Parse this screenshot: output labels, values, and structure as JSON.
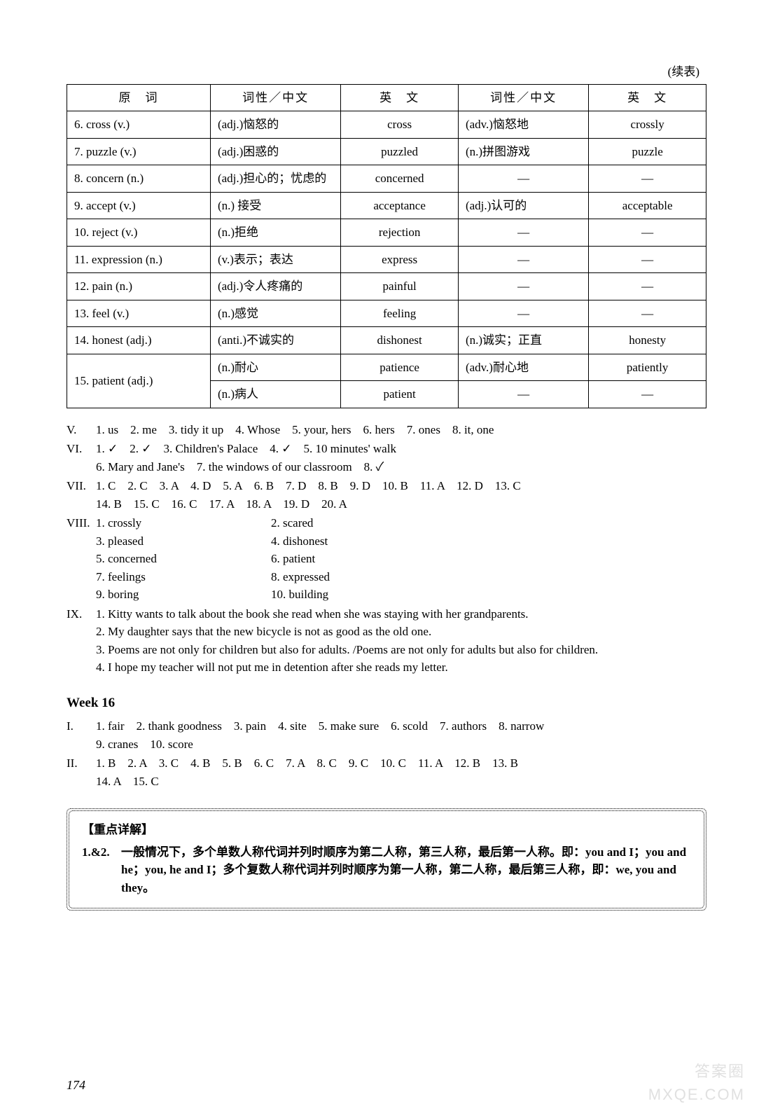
{
  "continuedLabel": "(续表)",
  "table": {
    "headers": [
      "原　词",
      "词性／中文",
      "英　文",
      "词性／中文",
      "英　文"
    ],
    "rows": [
      {
        "orig": "6. cross (v.)",
        "pos1": "(adj.)恼怒的",
        "eng1": "cross",
        "pos2": "(adv.)恼怒地",
        "eng2": "crossly"
      },
      {
        "orig": "7. puzzle (v.)",
        "pos1": "(adj.)困惑的",
        "eng1": "puzzled",
        "pos2": "(n.)拼图游戏",
        "eng2": "puzzle"
      },
      {
        "orig": "8. concern (n.)",
        "pos1": "(adj.)担心的；忧虑的",
        "eng1": "concerned",
        "pos2": "—",
        "eng2": "—"
      },
      {
        "orig": "9. accept (v.)",
        "pos1": "(n.) 接受",
        "eng1": "acceptance",
        "pos2": "(adj.)认可的",
        "eng2": "acceptable"
      },
      {
        "orig": "10. reject (v.)",
        "pos1": "(n.)拒绝",
        "eng1": "rejection",
        "pos2": "—",
        "eng2": "—"
      },
      {
        "orig": "11. expression (n.)",
        "pos1": "(v.)表示；表达",
        "eng1": "express",
        "pos2": "—",
        "eng2": "—"
      },
      {
        "orig": "12. pain (n.)",
        "pos1": "(adj.)令人疼痛的",
        "eng1": "painful",
        "pos2": "—",
        "eng2": "—"
      },
      {
        "orig": "13. feel (v.)",
        "pos1": "(n.)感觉",
        "eng1": "feeling",
        "pos2": "—",
        "eng2": "—"
      },
      {
        "orig": "14. honest (adj.)",
        "pos1": "(anti.)不诚实的",
        "eng1": "dishonest",
        "pos2": "(n.)诚实；正直",
        "eng2": "honesty"
      }
    ],
    "merged": {
      "orig": "15. patient (adj.)",
      "rowA": {
        "pos1": "(n.)耐心",
        "eng1": "patience",
        "pos2": "(adv.)耐心地",
        "eng2": "patiently"
      },
      "rowB": {
        "pos1": "(n.)病人",
        "eng1": "patient",
        "pos2": "—",
        "eng2": "—"
      }
    }
  },
  "V": "1. us　2. me　3. tidy it up　4. Whose　5. your, hers　6. hers　7. ones　8. it, one",
  "VI": {
    "line1": "1. ✓　2. ✓　3. Children's Palace　4. ✓　5. 10 minutes' walk",
    "line2": "6. Mary and Jane's　7. the windows of our classroom　8. ✓"
  },
  "VII": {
    "line1": "1. C　2. C　3. A　4. D　5. A　6. B　7. D　8. B　9. D　10. B　11. A　12. D　13. C",
    "line2": "14. B　15. C　16. C　17. A　18. A　19. D　20. A"
  },
  "VIII": [
    [
      "1. crossly",
      "2. scared"
    ],
    [
      "3. pleased",
      "4. dishonest"
    ],
    [
      "5. concerned",
      "6. patient"
    ],
    [
      "7. feelings",
      "8. expressed"
    ],
    [
      "9. boring",
      "10. building"
    ]
  ],
  "IX": [
    "1. Kitty wants to talk about the book she read when she was staying with her grandparents.",
    "2. My daughter says that the new bicycle is not as good as the old one.",
    "3. Poems are not only for children but also for adults. /Poems are not only for adults but also for children.",
    "4. I hope my teacher will not put me in detention after she reads my letter."
  ],
  "week16": {
    "heading": "Week 16",
    "I": {
      "line1": "1. fair　2. thank goodness　3. pain　4. site　5. make sure　6. scold　7. authors　8. narrow",
      "line2": "9. cranes　10. score"
    },
    "II": {
      "line1": "1. B　2. A　3. C　4. B　5. B　6. C　7. A　8. C　9. C　10. C　11. A　12. B　13. B",
      "line2": "14. A　15. C"
    }
  },
  "explain": {
    "title": "【重点详解】",
    "num": "1.&2.",
    "text": "一般情况下，多个单数人称代词并列时顺序为第二人称，第三人称，最后第一人称。即：you and I；you and he；you, he and I；多个复数人称代词并列时顺序为第一人称，第二人称，最后第三人称，即：we, you and they。"
  },
  "pageNumber": "174",
  "watermark": {
    "l1": "答案圈",
    "l2": "MXQE.COM"
  }
}
